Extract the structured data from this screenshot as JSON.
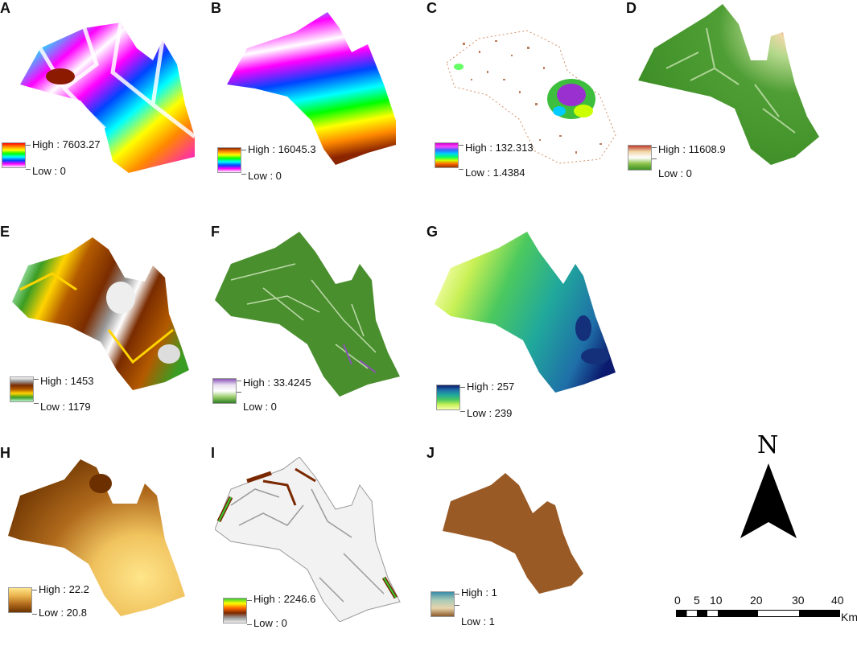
{
  "panels": [
    {
      "id": "A",
      "legend": {
        "high": "High : 7603.27",
        "low": "Low : 0"
      },
      "colors": [
        "#ff0000",
        "#ff8800",
        "#ffff00",
        "#00ff00",
        "#00ffff",
        "#0044ff",
        "#ff00ff",
        "#ffffff"
      ]
    },
    {
      "id": "B",
      "legend": {
        "high": "High : 16045.3",
        "low": "Low : 0"
      },
      "colors": [
        "#8b2500",
        "#ff8800",
        "#ffff00",
        "#00ff00",
        "#00ffff",
        "#0044ff",
        "#ff00ff",
        "#ffffff"
      ]
    },
    {
      "id": "C",
      "legend": {
        "high": "High : 132.313",
        "low": "Low : 1.4384"
      },
      "colors": [
        "#cc00cc",
        "#ff44ff",
        "#3366ff",
        "#00ccff",
        "#00ff66",
        "#ccff00",
        "#ff6600",
        "#993300"
      ]
    },
    {
      "id": "D",
      "legend": {
        "high": "High : 11608.9",
        "low": "Low : 0"
      },
      "colors": [
        "#c0392b",
        "#f0d8a8",
        "#ffffff",
        "#8bc34a",
        "#3f8f28"
      ]
    },
    {
      "id": "E",
      "legend": {
        "high": "High : 1453",
        "low": "Low : 1179"
      },
      "colors": [
        "#ffffff",
        "#999999",
        "#7a2c00",
        "#b35a00",
        "#ffd400",
        "#3a9d23",
        "#b9f5d0"
      ]
    },
    {
      "id": "F",
      "legend": {
        "high": "High : 33.4245",
        "low": "Low : 0"
      },
      "colors": [
        "#8a55b8",
        "#e8dff0",
        "#ffffff",
        "#9acd6b",
        "#2e7d23"
      ]
    },
    {
      "id": "G",
      "legend": {
        "high": "High : 257",
        "low": "Low : 239"
      },
      "colors": [
        "#0b1a6e",
        "#1f6fa8",
        "#20a89c",
        "#4cc95e",
        "#c8f055",
        "#f7ffb0"
      ]
    },
    {
      "id": "H",
      "legend": {
        "high": "High : 22.2",
        "low": "Low : 20.8"
      },
      "colors": [
        "#ffe58a",
        "#e8b04a",
        "#b06a1c",
        "#6b3300"
      ]
    },
    {
      "id": "I",
      "legend": {
        "high": "High : 2246.6",
        "low": "Low : 0"
      },
      "colors": [
        "#f2f2f2",
        "#33cc33",
        "#ffff00",
        "#ff6600",
        "#7a2800",
        "#9a9a9a"
      ]
    },
    {
      "id": "J",
      "legend": {
        "high": "High : 1",
        "low": "Low : 1"
      },
      "colors": [
        "#3a8ca8",
        "#a9cbb7",
        "#e8d4ac",
        "#8b5a2b"
      ]
    }
  ],
  "north_arrow": {
    "label": "N"
  },
  "scale_bar": {
    "ticks": [
      "0",
      "5",
      "10",
      "20",
      "30",
      "40"
    ],
    "unit": "Km"
  }
}
